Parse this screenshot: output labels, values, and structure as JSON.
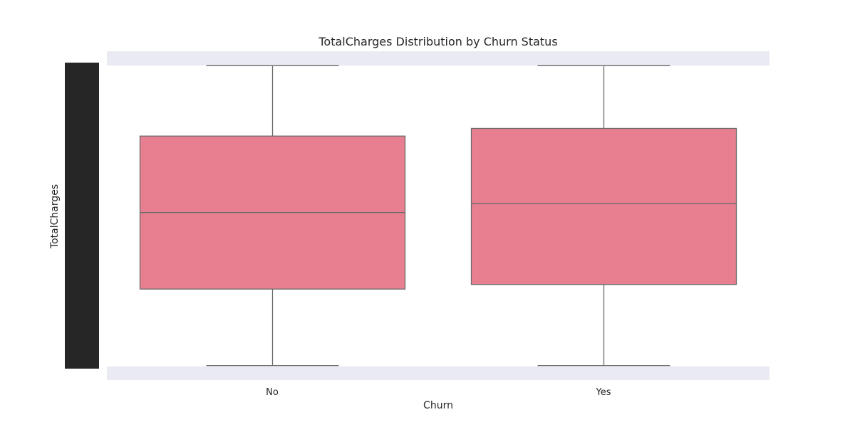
{
  "chart_data": {
    "type": "box",
    "title": "TotalCharges Distribution by Churn Status",
    "xlabel": "Churn",
    "ylabel": "TotalCharges",
    "categories": [
      "No",
      "Yes"
    ],
    "boxes": [
      {
        "category": "No",
        "whisker_low": 0.01,
        "q1": 0.26,
        "median": 0.51,
        "q3": 0.76,
        "whisker_high": 0.99
      },
      {
        "category": "Yes",
        "whisker_low": 0.01,
        "q1": 0.275,
        "median": 0.54,
        "q3": 0.785,
        "whisker_high": 0.99
      }
    ],
    "ylim": [
      0,
      1
    ],
    "grid": false,
    "y_tick_labels_obscured": true,
    "colors": {
      "box_fill": "#e77f91",
      "box_edge": "#6b6b6b",
      "axes_bg": "#eaeaf2",
      "plot_bg": "#ffffff",
      "ytick_block": "#262626"
    }
  }
}
